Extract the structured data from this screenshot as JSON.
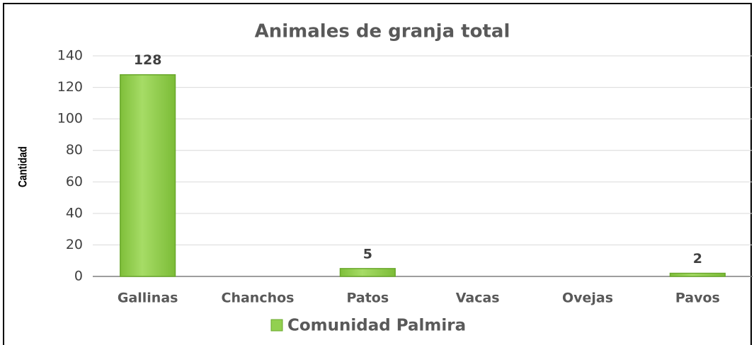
{
  "chart_data": {
    "type": "bar",
    "title": "Animales de granja total",
    "y_label": "Cantidad",
    "categories": [
      "Gallinas",
      "Chanchos",
      "Patos",
      "Vacas",
      "Ovejas",
      "Pavos"
    ],
    "series": [
      {
        "name": "Comunidad Palmira",
        "color": "#92d050",
        "values": [
          128,
          null,
          5,
          null,
          null,
          2
        ]
      }
    ],
    "ylim": [
      0,
      140
    ],
    "yticks": [
      0,
      20,
      40,
      60,
      80,
      100,
      120,
      140
    ],
    "grid": true,
    "legend": "bottom"
  }
}
